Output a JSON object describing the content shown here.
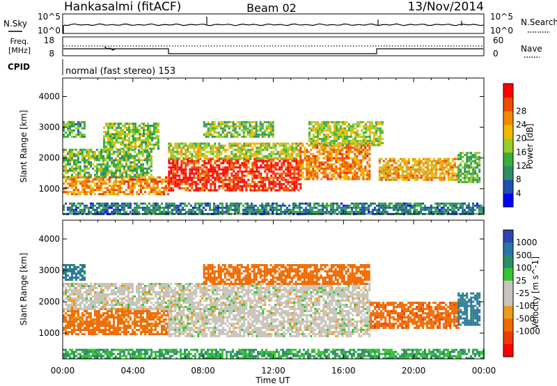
{
  "header": {
    "station": "Hankasalmi (fitACF)",
    "beam": "Beam 02",
    "date": "13/Nov/2014"
  },
  "noise_panel": {
    "left_label": "N.Sky",
    "right_label": "N.Search",
    "left_ticks": [
      "10^5",
      "10^0"
    ],
    "right_ticks": [
      "10^5",
      "10^0"
    ]
  },
  "freq_panel": {
    "left_label_1": "Freq.",
    "left_label_2": "[MHz]",
    "right_label": "Nave",
    "left_ticks": [
      "18",
      "8"
    ],
    "right_ticks": [
      "60",
      "0"
    ]
  },
  "cpid_panel": {
    "label": "CPID",
    "text": "normal (fast stereo) 153"
  },
  "colors": {
    "power_scale": [
      "#0000ff",
      "#1f4fb0",
      "#2e8c66",
      "#3aae3a",
      "#9ccc2a",
      "#f2b800",
      "#f08a00",
      "#ee4a00",
      "#ff0000"
    ],
    "velocity_scale": [
      "#2e44b0",
      "#2b74a8",
      "#2e8c66",
      "#33c533",
      "#c7c4bb",
      "#c7c4bb",
      "#ef9a1a",
      "#f06a00",
      "#ee3a00",
      "#ff0000"
    ]
  },
  "chart_data": [
    {
      "type": "heatmap",
      "ylabel": "Slant Range [km]",
      "x_ticks": [
        "00:00",
        "04:00",
        "08:00",
        "12:00",
        "16:00",
        "20:00",
        "00:00"
      ],
      "y_ticks": [
        "1000",
        "2000",
        "3000",
        "4000"
      ],
      "xlim_hours": [
        0,
        24
      ],
      "ylim_km": [
        180,
        4600
      ],
      "colorbar_label": "Power [dB]",
      "colorbar_ticks": [
        "4",
        "8",
        "12",
        "16",
        "20",
        "24",
        "28"
      ],
      "color_range": [
        0,
        30
      ],
      "bands": [
        {
          "x": [
            0.0,
            6.0
          ],
          "y": [
            850,
            1400
          ],
          "value": 22
        },
        {
          "x": [
            0.0,
            5.0
          ],
          "y": [
            1400,
            2300
          ],
          "value": 13
        },
        {
          "x": [
            0.0,
            1.2
          ],
          "y": [
            2700,
            3200
          ],
          "value": 11
        },
        {
          "x": [
            2.3,
            5.5
          ],
          "y": [
            2300,
            3150
          ],
          "value": 14
        },
        {
          "x": [
            6.0,
            13.5
          ],
          "y": [
            950,
            2000
          ],
          "value": 27
        },
        {
          "x": [
            6.0,
            13.5
          ],
          "y": [
            2000,
            2500
          ],
          "value": 16
        },
        {
          "x": [
            8.0,
            12.0
          ],
          "y": [
            2700,
            3200
          ],
          "value": 13
        },
        {
          "x": [
            13.5,
            17.5
          ],
          "y": [
            1300,
            2500
          ],
          "value": 22
        },
        {
          "x": [
            14.0,
            18.2
          ],
          "y": [
            2400,
            3200
          ],
          "value": 15
        },
        {
          "x": [
            18.0,
            22.5
          ],
          "y": [
            1300,
            2000
          ],
          "value": 20
        },
        {
          "x": [
            22.5,
            23.7
          ],
          "y": [
            1200,
            2200
          ],
          "value": 12
        },
        {
          "x": [
            0.0,
            24.0
          ],
          "y": [
            200,
            550
          ],
          "value": 8
        }
      ]
    },
    {
      "type": "heatmap",
      "ylabel": "Slant Range [km]",
      "xlabel": "Time UT",
      "x_ticks": [
        "00:00",
        "04:00",
        "08:00",
        "12:00",
        "16:00",
        "20:00",
        "00:00"
      ],
      "y_ticks": [
        "1000",
        "2000",
        "3000",
        "4000"
      ],
      "xlim_hours": [
        0,
        24
      ],
      "ylim_km": [
        180,
        4600
      ],
      "colorbar_label": "Velocity [m s^-1]",
      "colorbar_ticks": [
        "1000",
        "500",
        "100",
        "25",
        "-25",
        "-100",
        "-500",
        "-1000"
      ],
      "bands": [
        {
          "x": [
            0.0,
            6.0
          ],
          "y": [
            950,
            1800
          ],
          "value": -150
        },
        {
          "x": [
            0.0,
            6.0
          ],
          "y": [
            1800,
            2600
          ],
          "value": 0
        },
        {
          "x": [
            0.0,
            1.2
          ],
          "y": [
            2700,
            3200
          ],
          "value": 500
        },
        {
          "x": [
            6.0,
            17.5
          ],
          "y": [
            900,
            2600
          ],
          "value": 0
        },
        {
          "x": [
            8.0,
            17.5
          ],
          "y": [
            2600,
            3200
          ],
          "value": -200
        },
        {
          "x": [
            17.5,
            22.5
          ],
          "y": [
            1200,
            2000
          ],
          "value": -400
        },
        {
          "x": [
            22.5,
            23.7
          ],
          "y": [
            1300,
            2300
          ],
          "value": 600
        },
        {
          "x": [
            0.0,
            24.0
          ],
          "y": [
            200,
            500
          ],
          "value": 100
        }
      ]
    }
  ]
}
